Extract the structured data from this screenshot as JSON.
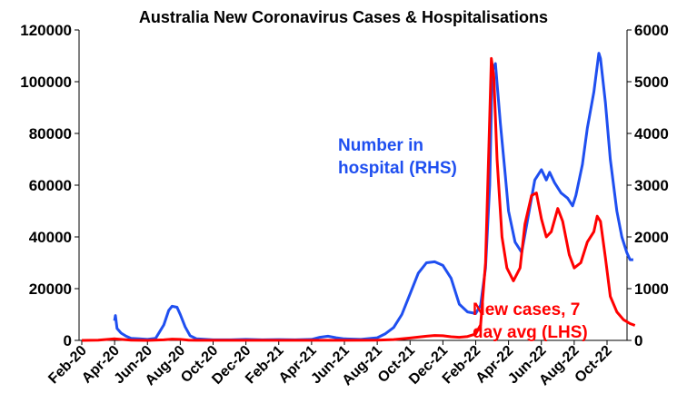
{
  "chart_data": {
    "type": "line",
    "title": "Australia New Coronavirus Cases & Hospitalisations",
    "colors": {
      "hospital": "#1f4ff0",
      "cases": "#ff0000",
      "axis": "#000000"
    },
    "x_tick_labels": [
      "Feb-20",
      "Apr-20",
      "Jun-20",
      "Aug-20",
      "Oct-20",
      "Dec-20",
      "Feb-21",
      "Apr-21",
      "Jun-21",
      "Aug-21",
      "Oct-21",
      "Dec-21",
      "Feb-22",
      "Apr-22",
      "Jun-22",
      "Aug-22",
      "Oct-22"
    ],
    "y_left": {
      "min": 0,
      "max": 120000,
      "ticks": [
        "0",
        "20000",
        "40000",
        "60000",
        "80000",
        "100000",
        "120000"
      ]
    },
    "y_right": {
      "min": 0,
      "max": 6000,
      "ticks": [
        "0",
        "1000",
        "2000",
        "3000",
        "4000",
        "5000",
        "6000"
      ]
    },
    "annotations": {
      "hospital": [
        "Number in",
        "hospital (RHS)"
      ],
      "cases": [
        "New cases, 7",
        "day avg (LHS)"
      ]
    },
    "series": [
      {
        "name": "Number in hospital (RHS)",
        "axis": "right",
        "points": [
          [
            2.0,
            380
          ],
          [
            2.05,
            480
          ],
          [
            2.15,
            230
          ],
          [
            2.4,
            140
          ],
          [
            2.7,
            80
          ],
          [
            3.0,
            40
          ],
          [
            3.5,
            30
          ],
          [
            4.0,
            20
          ],
          [
            4.5,
            40
          ],
          [
            5.0,
            300
          ],
          [
            5.3,
            580
          ],
          [
            5.5,
            660
          ],
          [
            5.8,
            640
          ],
          [
            6.0,
            500
          ],
          [
            6.3,
            260
          ],
          [
            6.6,
            90
          ],
          [
            7.0,
            30
          ],
          [
            8.0,
            10
          ],
          [
            9.0,
            10
          ],
          [
            10.0,
            20
          ],
          [
            11.0,
            10
          ],
          [
            12.0,
            15
          ],
          [
            13.0,
            10
          ],
          [
            14.0,
            20
          ],
          [
            14.5,
            60
          ],
          [
            15.0,
            80
          ],
          [
            15.5,
            50
          ],
          [
            16.0,
            30
          ],
          [
            17.0,
            20
          ],
          [
            18.0,
            50
          ],
          [
            18.5,
            130
          ],
          [
            19.0,
            250
          ],
          [
            19.5,
            500
          ],
          [
            20.0,
            900
          ],
          [
            20.5,
            1300
          ],
          [
            21.0,
            1500
          ],
          [
            21.5,
            1520
          ],
          [
            22.0,
            1450
          ],
          [
            22.5,
            1200
          ],
          [
            23.0,
            700
          ],
          [
            23.5,
            550
          ],
          [
            24.0,
            520
          ],
          [
            24.3,
            680
          ],
          [
            24.6,
            1400
          ],
          [
            24.85,
            3000
          ],
          [
            25.0,
            5200
          ],
          [
            25.2,
            5350
          ],
          [
            25.5,
            4200
          ],
          [
            25.8,
            3200
          ],
          [
            26.0,
            2500
          ],
          [
            26.4,
            1900
          ],
          [
            26.8,
            1700
          ],
          [
            27.2,
            2400
          ],
          [
            27.6,
            3100
          ],
          [
            28.0,
            3300
          ],
          [
            28.3,
            3100
          ],
          [
            28.5,
            3250
          ],
          [
            28.8,
            3050
          ],
          [
            29.2,
            2850
          ],
          [
            29.6,
            2750
          ],
          [
            29.9,
            2600
          ],
          [
            30.1,
            2800
          ],
          [
            30.5,
            3400
          ],
          [
            30.8,
            4100
          ],
          [
            31.2,
            4800
          ],
          [
            31.5,
            5550
          ],
          [
            31.6,
            5450
          ],
          [
            31.9,
            4600
          ],
          [
            32.2,
            3500
          ],
          [
            32.6,
            2500
          ],
          [
            32.9,
            2000
          ],
          [
            33.2,
            1700
          ],
          [
            33.4,
            1560
          ],
          [
            33.6,
            1560
          ]
        ]
      },
      {
        "name": "New cases, 7 day avg (LHS)",
        "axis": "left",
        "points": [
          [
            0.0,
            0
          ],
          [
            1.0,
            100
          ],
          [
            2.0,
            600
          ],
          [
            3.0,
            100
          ],
          [
            4.0,
            0
          ],
          [
            5.0,
            200
          ],
          [
            5.5,
            500
          ],
          [
            6.0,
            400
          ],
          [
            6.5,
            100
          ],
          [
            7.0,
            20
          ],
          [
            10.0,
            20
          ],
          [
            12.0,
            30
          ],
          [
            14.0,
            40
          ],
          [
            16.0,
            40
          ],
          [
            18.0,
            100
          ],
          [
            19.0,
            300
          ],
          [
            20.0,
            900
          ],
          [
            21.0,
            1600
          ],
          [
            21.5,
            1900
          ],
          [
            22.0,
            1800
          ],
          [
            22.5,
            1400
          ],
          [
            23.0,
            1200
          ],
          [
            23.5,
            1500
          ],
          [
            24.0,
            2500
          ],
          [
            24.3,
            6000
          ],
          [
            24.6,
            30000
          ],
          [
            24.8,
            75000
          ],
          [
            24.95,
            109000
          ],
          [
            25.1,
            102000
          ],
          [
            25.3,
            70000
          ],
          [
            25.6,
            40000
          ],
          [
            25.9,
            28000
          ],
          [
            26.3,
            23000
          ],
          [
            26.7,
            28000
          ],
          [
            27.0,
            45000
          ],
          [
            27.4,
            56000
          ],
          [
            27.7,
            57000
          ],
          [
            28.0,
            47000
          ],
          [
            28.3,
            40000
          ],
          [
            28.6,
            42000
          ],
          [
            29.0,
            51000
          ],
          [
            29.3,
            46000
          ],
          [
            29.7,
            33000
          ],
          [
            30.0,
            28000
          ],
          [
            30.4,
            30000
          ],
          [
            30.8,
            38000
          ],
          [
            31.2,
            42000
          ],
          [
            31.4,
            48000
          ],
          [
            31.6,
            46000
          ],
          [
            31.9,
            32000
          ],
          [
            32.2,
            17000
          ],
          [
            32.6,
            11000
          ],
          [
            33.0,
            8000
          ],
          [
            33.4,
            6500
          ],
          [
            33.7,
            5800
          ]
        ]
      }
    ]
  }
}
